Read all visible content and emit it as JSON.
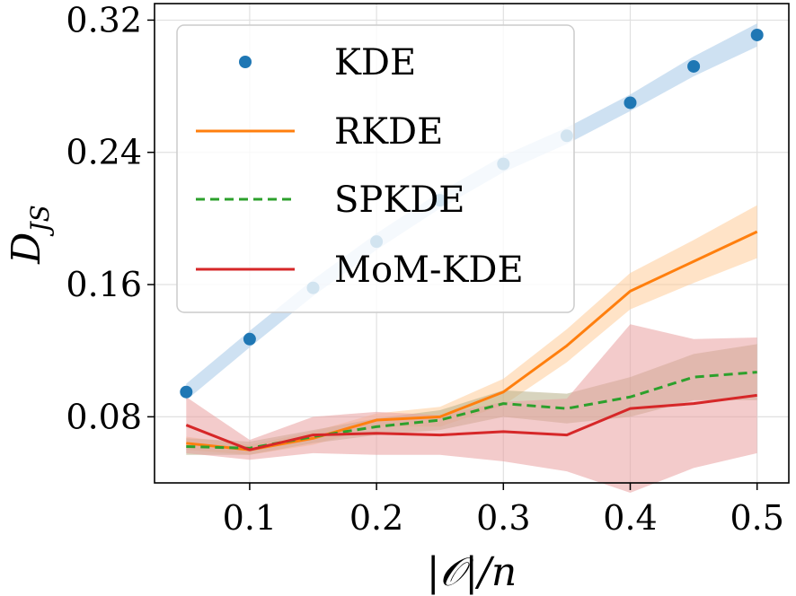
{
  "chart_data": {
    "type": "line",
    "title": "",
    "xlabel": "|𝒪|/n",
    "ylabel": "D",
    "ylabel_sub": "JS",
    "xlim": [
      0.025,
      0.525
    ],
    "ylim": [
      0.04,
      0.33
    ],
    "xticks": [
      0.1,
      0.2,
      0.3,
      0.4,
      0.5
    ],
    "xtick_labels": [
      "0.1",
      "0.2",
      "0.3",
      "0.4",
      "0.5"
    ],
    "yticks": [
      0.08,
      0.16,
      0.24,
      0.32
    ],
    "ytick_labels": [
      "0.08",
      "0.16",
      "0.24",
      "0.32"
    ],
    "grid": true,
    "legend_position": "top-left",
    "x": [
      0.05,
      0.1,
      0.15,
      0.2,
      0.25,
      0.3,
      0.35,
      0.4,
      0.45,
      0.5
    ],
    "series": [
      {
        "name": "KDE",
        "style": "markers",
        "color": "#1f77b4",
        "band_color": "#a6c8e8",
        "values": [
          0.095,
          0.127,
          0.158,
          0.186,
          0.211,
          0.233,
          0.25,
          0.27,
          0.292,
          0.311
        ],
        "band_half_width": [
          0.005,
          0.005,
          0.005,
          0.005,
          0.005,
          0.005,
          0.005,
          0.005,
          0.006,
          0.007
        ]
      },
      {
        "name": "RKDE",
        "style": "solid",
        "color": "#ff7f0e",
        "band_color": "#ffcc99",
        "values": [
          0.064,
          0.06,
          0.067,
          0.078,
          0.08,
          0.095,
          0.123,
          0.156,
          0.174,
          0.192
        ],
        "band_half_width": [
          0.004,
          0.003,
          0.004,
          0.004,
          0.006,
          0.008,
          0.01,
          0.011,
          0.013,
          0.016
        ]
      },
      {
        "name": "SPKDE",
        "style": "dashed",
        "color": "#2ca02c",
        "band_color": "#b8b088",
        "values": [
          0.062,
          0.061,
          0.068,
          0.074,
          0.078,
          0.088,
          0.085,
          0.092,
          0.104,
          0.107
        ],
        "band_half_width": [
          0.005,
          0.004,
          0.004,
          0.005,
          0.006,
          0.008,
          0.009,
          0.012,
          0.014,
          0.017
        ]
      },
      {
        "name": "MoM-KDE",
        "style": "solid",
        "color": "#d62728",
        "band_color": "#eaa0a0",
        "values": [
          0.075,
          0.06,
          0.069,
          0.07,
          0.069,
          0.071,
          0.069,
          0.085,
          0.088,
          0.093
        ],
        "band_half_width": [
          0.017,
          0.006,
          0.011,
          0.013,
          0.012,
          0.018,
          0.022,
          0.051,
          0.039,
          0.035
        ]
      }
    ]
  }
}
